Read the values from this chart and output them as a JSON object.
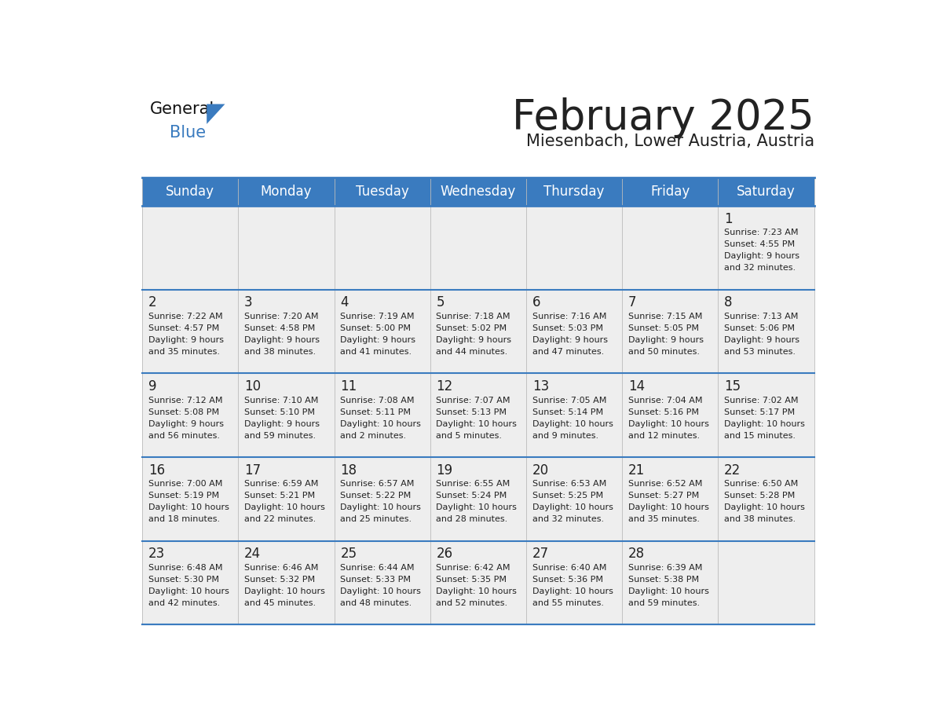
{
  "title": "February 2025",
  "subtitle": "Miesenbach, Lower Austria, Austria",
  "header_color": "#3a7bbf",
  "header_text_color": "#ffffff",
  "cell_bg_even": "#eeeeee",
  "cell_bg_odd": "#f5f5f5",
  "day_names": [
    "Sunday",
    "Monday",
    "Tuesday",
    "Wednesday",
    "Thursday",
    "Friday",
    "Saturday"
  ],
  "border_color": "#3a7bbf",
  "separator_color": "#cccccc",
  "text_color": "#222222",
  "days": [
    {
      "day": 1,
      "col": 6,
      "row": 0,
      "sunrise": "7:23 AM",
      "sunset": "4:55 PM",
      "daylight": "9 hours and 32 minutes."
    },
    {
      "day": 2,
      "col": 0,
      "row": 1,
      "sunrise": "7:22 AM",
      "sunset": "4:57 PM",
      "daylight": "9 hours and 35 minutes."
    },
    {
      "day": 3,
      "col": 1,
      "row": 1,
      "sunrise": "7:20 AM",
      "sunset": "4:58 PM",
      "daylight": "9 hours and 38 minutes."
    },
    {
      "day": 4,
      "col": 2,
      "row": 1,
      "sunrise": "7:19 AM",
      "sunset": "5:00 PM",
      "daylight": "9 hours and 41 minutes."
    },
    {
      "day": 5,
      "col": 3,
      "row": 1,
      "sunrise": "7:18 AM",
      "sunset": "5:02 PM",
      "daylight": "9 hours and 44 minutes."
    },
    {
      "day": 6,
      "col": 4,
      "row": 1,
      "sunrise": "7:16 AM",
      "sunset": "5:03 PM",
      "daylight": "9 hours and 47 minutes."
    },
    {
      "day": 7,
      "col": 5,
      "row": 1,
      "sunrise": "7:15 AM",
      "sunset": "5:05 PM",
      "daylight": "9 hours and 50 minutes."
    },
    {
      "day": 8,
      "col": 6,
      "row": 1,
      "sunrise": "7:13 AM",
      "sunset": "5:06 PM",
      "daylight": "9 hours and 53 minutes."
    },
    {
      "day": 9,
      "col": 0,
      "row": 2,
      "sunrise": "7:12 AM",
      "sunset": "5:08 PM",
      "daylight": "9 hours and 56 minutes."
    },
    {
      "day": 10,
      "col": 1,
      "row": 2,
      "sunrise": "7:10 AM",
      "sunset": "5:10 PM",
      "daylight": "9 hours and 59 minutes."
    },
    {
      "day": 11,
      "col": 2,
      "row": 2,
      "sunrise": "7:08 AM",
      "sunset": "5:11 PM",
      "daylight": "10 hours and 2 minutes."
    },
    {
      "day": 12,
      "col": 3,
      "row": 2,
      "sunrise": "7:07 AM",
      "sunset": "5:13 PM",
      "daylight": "10 hours and 5 minutes."
    },
    {
      "day": 13,
      "col": 4,
      "row": 2,
      "sunrise": "7:05 AM",
      "sunset": "5:14 PM",
      "daylight": "10 hours and 9 minutes."
    },
    {
      "day": 14,
      "col": 5,
      "row": 2,
      "sunrise": "7:04 AM",
      "sunset": "5:16 PM",
      "daylight": "10 hours and 12 minutes."
    },
    {
      "day": 15,
      "col": 6,
      "row": 2,
      "sunrise": "7:02 AM",
      "sunset": "5:17 PM",
      "daylight": "10 hours and 15 minutes."
    },
    {
      "day": 16,
      "col": 0,
      "row": 3,
      "sunrise": "7:00 AM",
      "sunset": "5:19 PM",
      "daylight": "10 hours and 18 minutes."
    },
    {
      "day": 17,
      "col": 1,
      "row": 3,
      "sunrise": "6:59 AM",
      "sunset": "5:21 PM",
      "daylight": "10 hours and 22 minutes."
    },
    {
      "day": 18,
      "col": 2,
      "row": 3,
      "sunrise": "6:57 AM",
      "sunset": "5:22 PM",
      "daylight": "10 hours and 25 minutes."
    },
    {
      "day": 19,
      "col": 3,
      "row": 3,
      "sunrise": "6:55 AM",
      "sunset": "5:24 PM",
      "daylight": "10 hours and 28 minutes."
    },
    {
      "day": 20,
      "col": 4,
      "row": 3,
      "sunrise": "6:53 AM",
      "sunset": "5:25 PM",
      "daylight": "10 hours and 32 minutes."
    },
    {
      "day": 21,
      "col": 5,
      "row": 3,
      "sunrise": "6:52 AM",
      "sunset": "5:27 PM",
      "daylight": "10 hours and 35 minutes."
    },
    {
      "day": 22,
      "col": 6,
      "row": 3,
      "sunrise": "6:50 AM",
      "sunset": "5:28 PM",
      "daylight": "10 hours and 38 minutes."
    },
    {
      "day": 23,
      "col": 0,
      "row": 4,
      "sunrise": "6:48 AM",
      "sunset": "5:30 PM",
      "daylight": "10 hours and 42 minutes."
    },
    {
      "day": 24,
      "col": 1,
      "row": 4,
      "sunrise": "6:46 AM",
      "sunset": "5:32 PM",
      "daylight": "10 hours and 45 minutes."
    },
    {
      "day": 25,
      "col": 2,
      "row": 4,
      "sunrise": "6:44 AM",
      "sunset": "5:33 PM",
      "daylight": "10 hours and 48 minutes."
    },
    {
      "day": 26,
      "col": 3,
      "row": 4,
      "sunrise": "6:42 AM",
      "sunset": "5:35 PM",
      "daylight": "10 hours and 52 minutes."
    },
    {
      "day": 27,
      "col": 4,
      "row": 4,
      "sunrise": "6:40 AM",
      "sunset": "5:36 PM",
      "daylight": "10 hours and 55 minutes."
    },
    {
      "day": 28,
      "col": 5,
      "row": 4,
      "sunrise": "6:39 AM",
      "sunset": "5:38 PM",
      "daylight": "10 hours and 59 minutes."
    }
  ],
  "logo_text1": "General",
  "logo_text2": "Blue",
  "logo_triangle_color": "#3a7bbf",
  "logo_text1_color": "#111111",
  "title_fontsize": 38,
  "subtitle_fontsize": 15,
  "header_fontsize": 12,
  "day_num_fontsize": 12,
  "cell_text_fontsize": 8
}
